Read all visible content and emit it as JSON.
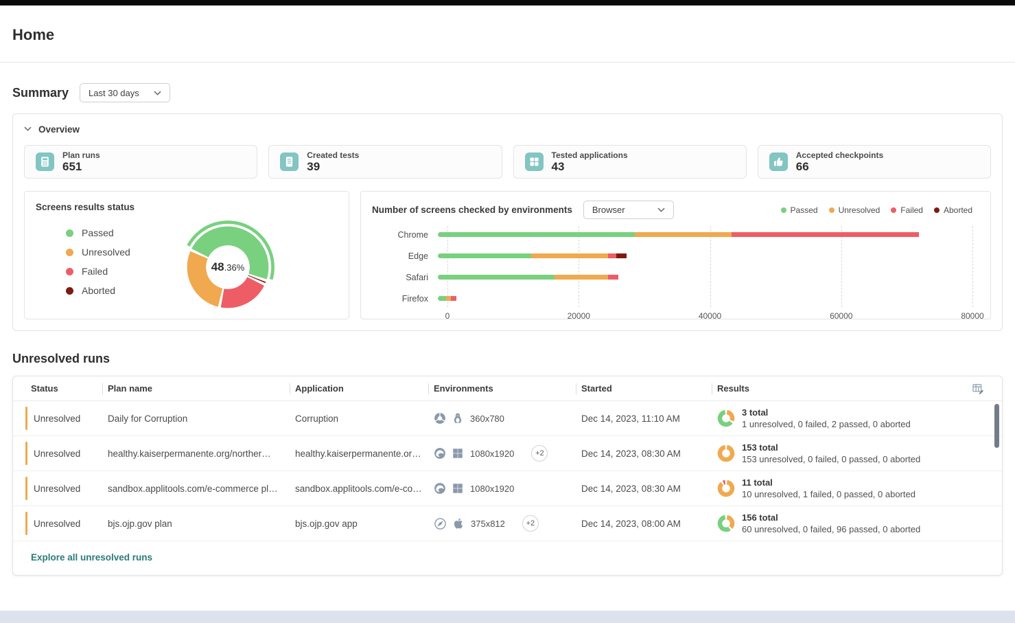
{
  "page": {
    "title": "Home"
  },
  "summary": {
    "heading": "Summary",
    "range_label": "Last 30 days"
  },
  "overview": {
    "heading": "Overview",
    "stats": [
      {
        "label": "Plan runs",
        "value": "651",
        "icon": "calculator"
      },
      {
        "label": "Created tests",
        "value": "39",
        "icon": "document"
      },
      {
        "label": "Tested applications",
        "value": "43",
        "icon": "grid"
      },
      {
        "label": "Accepted checkpoints",
        "value": "66",
        "icon": "thumbs-up"
      }
    ]
  },
  "colors": {
    "passed": "#79d07f",
    "unresolved": "#f0a94f",
    "failed": "#ee5d66",
    "aborted": "#7d1b12",
    "teal_icon": "#83c5c3",
    "link": "#2a7a78",
    "env_icon": "#8a99aa",
    "status_accent": "#f0a94f"
  },
  "chart_data": [
    {
      "type": "pie",
      "title": "Screens results status",
      "center_value_bold": "48",
      "center_value_rest": ".36%",
      "legend": [
        "Passed",
        "Unresolved",
        "Failed",
        "Aborted"
      ],
      "segments": [
        {
          "label": "Passed",
          "value": 48.36,
          "highlight": true
        },
        {
          "label": "Aborted",
          "value": 1.6
        },
        {
          "label": "Failed",
          "value": 21.4
        },
        {
          "label": "Unresolved",
          "value": 28.6
        }
      ],
      "start_angle": 295
    },
    {
      "type": "bar",
      "orientation": "horizontal",
      "stacked": true,
      "title": "Number of screens checked by environments",
      "filter_label": "Browser",
      "legend": [
        "Passed",
        "Unresolved",
        "Failed",
        "Aborted"
      ],
      "categories": [
        "Chrome",
        "Edge",
        "Safari",
        "Firefox"
      ],
      "series": [
        {
          "name": "Passed",
          "values": [
            29500,
            14000,
            17500,
            1200
          ]
        },
        {
          "name": "Unresolved",
          "values": [
            14500,
            11500,
            8000,
            800
          ]
        },
        {
          "name": "Failed",
          "values": [
            28000,
            1200,
            1500,
            800
          ]
        },
        {
          "name": "Aborted",
          "values": [
            0,
            1500,
            0,
            0
          ]
        }
      ],
      "xticks": [
        0,
        20000,
        40000,
        60000,
        80000
      ],
      "xmax": 80000
    }
  ],
  "runs_table": {
    "heading": "Unresolved runs",
    "columns": [
      "Status",
      "Plan name",
      "Application",
      "Environments",
      "Started",
      "Results"
    ],
    "rows": [
      {
        "status": "Unresolved",
        "plan_name": "Daily for Corruption",
        "application": "Corruption",
        "env_icons": [
          "chrome",
          "linux"
        ],
        "viewport": "360x780",
        "extra_badge": "",
        "started": "Dec 14, 2023, 11:10 AM",
        "results_total": "3 total",
        "results_breakdown": "1 unresolved,  0 failed,  2 passed,  0 aborted",
        "donut": [
          {
            "label": "Unresolved",
            "value": 1
          },
          {
            "label": "Passed",
            "value": 2
          }
        ]
      },
      {
        "status": "Unresolved",
        "plan_name": "healthy.kaiserpermanente.org/norther…",
        "application": "healthy.kaiserpermanente.or…",
        "env_icons": [
          "edge",
          "windows"
        ],
        "viewport": "1080x1920",
        "extra_badge": "+2",
        "started": "Dec 14, 2023, 08:30 AM",
        "results_total": "153 total",
        "results_breakdown": "153 unresolved,  0 failed,  0 passed,  0 aborted",
        "donut": [
          {
            "label": "Unresolved",
            "value": 153
          }
        ]
      },
      {
        "status": "Unresolved",
        "plan_name": "sandbox.applitools.com/e-commerce pl…",
        "application": "sandbox.applitools.com/e-co…",
        "env_icons": [
          "edge",
          "windows"
        ],
        "viewport": "1080x1920",
        "extra_badge": "",
        "started": "Dec 14, 2023, 08:30 AM",
        "results_total": "11 total",
        "results_breakdown": "10 unresolved,  1 failed,  0 passed,  0 aborted",
        "donut": [
          {
            "label": "Unresolved",
            "value": 10
          },
          {
            "label": "Failed",
            "value": 1
          }
        ]
      },
      {
        "status": "Unresolved",
        "plan_name": "bjs.ojp.gov plan",
        "application": "bjs.ojp.gov app",
        "env_icons": [
          "safari",
          "apple"
        ],
        "viewport": "375x812",
        "extra_badge": "+2",
        "started": "Dec 14, 2023, 08:00 AM",
        "results_total": "156 total",
        "results_breakdown": "60 unresolved,  0 failed,  96 passed,  0 aborted",
        "donut": [
          {
            "label": "Unresolved",
            "value": 60
          },
          {
            "label": "Passed",
            "value": 96
          }
        ]
      }
    ],
    "explore_label": "Explore all unresolved runs"
  }
}
